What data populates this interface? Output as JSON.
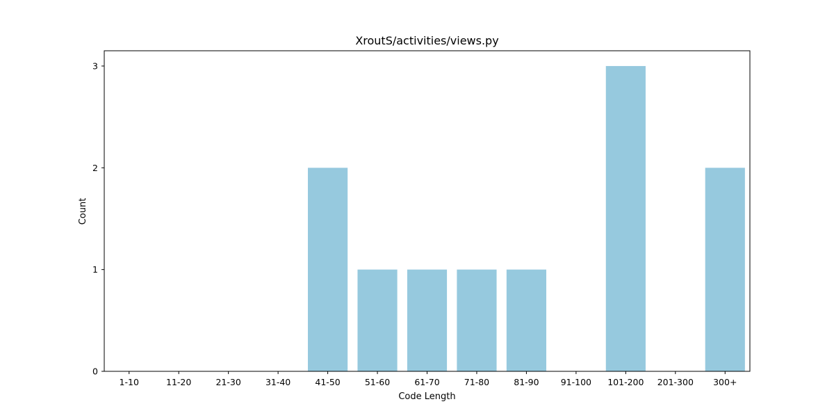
{
  "chart_data": {
    "type": "bar",
    "title": "XroutS/activities/views.py",
    "xlabel": "Code Length",
    "ylabel": "Count",
    "categories": [
      "1-10",
      "11-20",
      "21-30",
      "31-40",
      "41-50",
      "51-60",
      "61-70",
      "71-80",
      "81-90",
      "91-100",
      "101-200",
      "201-300",
      "300+"
    ],
    "values": [
      0,
      0,
      0,
      0,
      2,
      1,
      1,
      1,
      1,
      0,
      3,
      0,
      2
    ],
    "yticks": [
      0,
      1,
      2,
      3
    ],
    "ylim": [
      0,
      3.15
    ],
    "grid": false,
    "bar_color": "#96c9de"
  }
}
